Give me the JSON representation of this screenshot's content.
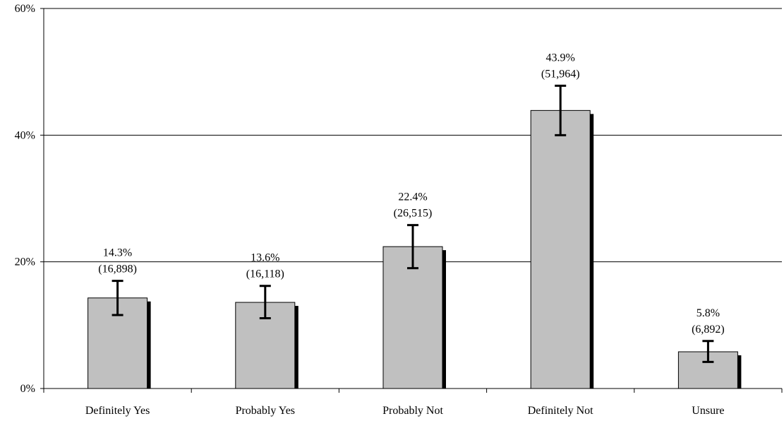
{
  "chart_data": {
    "type": "bar",
    "title": "",
    "xlabel": "",
    "ylabel": "",
    "categories": [
      "Definitely Yes",
      "Probably Yes",
      "Probably Not",
      "Definitely Not",
      "Unsure"
    ],
    "values": [
      14.3,
      13.6,
      22.4,
      43.9,
      5.8
    ],
    "value_labels": [
      "14.3%",
      "13.6%",
      "22.4%",
      "43.9%",
      "5.8%"
    ],
    "count_labels": [
      "(16,898)",
      "(16,118)",
      "(26,515)",
      "(51,964)",
      "(6,892)"
    ],
    "error_low": [
      11.6,
      11.1,
      19.0,
      40.0,
      4.2
    ],
    "error_high": [
      17.0,
      16.2,
      25.8,
      47.8,
      7.5
    ],
    "ylim": [
      0,
      60
    ],
    "yticks": [
      0,
      20,
      40,
      60
    ],
    "ytick_labels": [
      "0%",
      "20%",
      "40%",
      "60%"
    ],
    "grid": true,
    "legend": "none",
    "colors": {
      "bar": "#c0c0c0",
      "bar_border": "#000000",
      "shadow": "#000000",
      "error_bar": "#000000",
      "grid": "#000000",
      "axis": "#000000"
    }
  }
}
